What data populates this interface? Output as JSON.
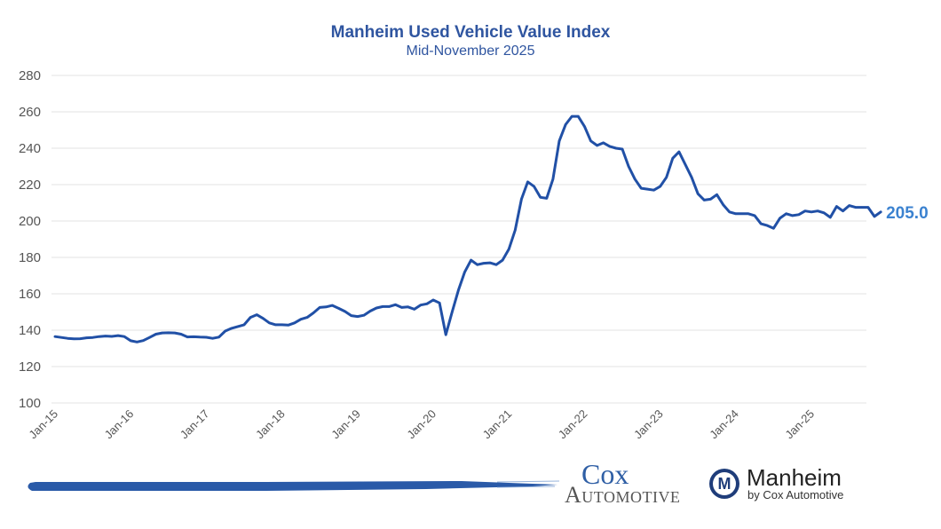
{
  "chart_data": {
    "type": "line",
    "title": "Manheim Used Vehicle Value Index",
    "subtitle": "Mid-November 2025",
    "xlabel": "",
    "ylabel": "",
    "ylim": [
      100,
      280
    ],
    "yticks": [
      100,
      120,
      140,
      160,
      180,
      200,
      220,
      240,
      260,
      280
    ],
    "ytick_labels": [
      "100",
      "120",
      "140",
      "160",
      "180",
      "200",
      "220",
      "240",
      "260",
      "280"
    ],
    "xtick_labels": [
      "Jan-15",
      "Jan-16",
      "Jan-17",
      "Jan-18",
      "Jan-19",
      "Jan-20",
      "Jan-21",
      "Jan-22",
      "Jan-23",
      "Jan-24",
      "Jan-25"
    ],
    "x_start": "Jan-2015",
    "x_frequency": "monthly",
    "grid": true,
    "legend": "none",
    "end_label": "205.0",
    "series": [
      {
        "name": "Manheim Used Vehicle Value Index",
        "color": "#2150a6",
        "values": [
          136.5,
          136.0,
          135.5,
          135.2,
          135.3,
          135.8,
          136.0,
          136.5,
          136.8,
          136.6,
          137.0,
          136.5,
          134.2,
          133.5,
          134.3,
          136.0,
          137.8,
          138.5,
          138.6,
          138.5,
          137.8,
          136.3,
          136.4,
          136.2,
          136.1,
          135.5,
          136.2,
          139.5,
          141.0,
          142.0,
          143.0,
          147.0,
          148.5,
          146.5,
          144.0,
          143.0,
          143.0,
          142.8,
          144.0,
          146.0,
          147.0,
          149.5,
          152.5,
          152.8,
          153.6,
          152.0,
          150.3,
          148.0,
          147.5,
          148.2,
          150.5,
          152.2,
          153.0,
          153.0,
          154.0,
          152.5,
          152.8,
          151.5,
          153.8,
          154.5,
          156.6,
          155.0,
          137.5,
          150.0,
          162.0,
          172.0,
          178.5,
          176.0,
          176.8,
          177.0,
          176.0,
          178.5,
          184.5,
          195.0,
          212.0,
          221.5,
          219.0,
          213.0,
          212.5,
          223.0,
          244.0,
          253.0,
          257.5,
          257.5,
          252.0,
          244.0,
          241.5,
          243.0,
          241.0,
          240.0,
          239.5,
          230.0,
          223.0,
          218.0,
          217.5,
          217.0,
          219.0,
          224.0,
          234.5,
          238.0,
          231.0,
          224.0,
          215.0,
          211.5,
          212.0,
          214.5,
          209.0,
          205.0,
          204.0,
          204.0,
          204.0,
          203.0,
          198.5,
          197.5,
          196.0,
          201.5,
          204.0,
          203.0,
          203.5,
          205.5,
          205.0,
          205.5,
          204.5,
          202.0,
          208.0,
          205.5,
          208.5,
          207.5,
          207.5,
          207.5,
          202.5,
          205.0
        ]
      }
    ]
  },
  "footer": {
    "cox_top": "Cox",
    "cox_bottom": "Automotive",
    "manheim_name": "Manheim",
    "manheim_by": "by Cox Automotive",
    "manheim_badge_letter": "M"
  }
}
